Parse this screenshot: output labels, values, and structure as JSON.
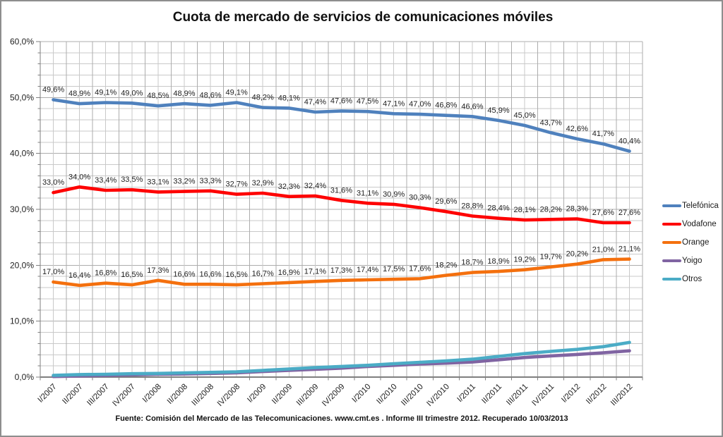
{
  "window": {
    "background": "#ffffff",
    "border_color": "#8e8e8e"
  },
  "chart_data": {
    "type": "line",
    "title": "Cuota de mercado de servicios de comunicaciones móviles",
    "source_note": "Fuente: Comisión del Mercado de las Telecomunicaciones. www.cmt.es . Informe III trimestre 2012. Recuperado 10/03/2013",
    "categories": [
      "I/2007",
      "II/2007",
      "III/2007",
      "IV/2007",
      "I/2008",
      "II/2008",
      "III/2008",
      "IV/2008",
      "I/2009",
      "II/2009",
      "III/2009",
      "IV/2009",
      "I/2010",
      "II/2010",
      "III/2010",
      "IV/2010",
      "I/2011",
      "II/2011",
      "III/2011",
      "IV/2011",
      "I/2012",
      "II/2012",
      "III/2012"
    ],
    "series": [
      {
        "name": "Telefónica",
        "color": "#4F81BD",
        "labels_visible": true,
        "values": [
          49.6,
          48.9,
          49.1,
          49.0,
          48.5,
          48.9,
          48.6,
          49.1,
          48.2,
          48.1,
          47.4,
          47.6,
          47.5,
          47.1,
          47.0,
          46.8,
          46.6,
          45.9,
          45.0,
          43.7,
          42.6,
          41.7,
          40.4
        ]
      },
      {
        "name": "Vodafone",
        "color": "#FE0000",
        "labels_visible": true,
        "values": [
          33.0,
          34.0,
          33.4,
          33.5,
          33.1,
          33.2,
          33.3,
          32.7,
          32.9,
          32.3,
          32.4,
          31.6,
          31.1,
          30.9,
          30.3,
          29.6,
          28.8,
          28.4,
          28.1,
          28.2,
          28.3,
          27.6,
          27.6
        ]
      },
      {
        "name": "Orange",
        "color": "#F4700E",
        "labels_visible": true,
        "values": [
          17.0,
          16.4,
          16.8,
          16.5,
          17.3,
          16.6,
          16.6,
          16.5,
          16.7,
          16.9,
          17.1,
          17.3,
          17.4,
          17.5,
          17.6,
          18.2,
          18.7,
          18.9,
          19.2,
          19.7,
          20.2,
          21.0,
          21.1
        ]
      },
      {
        "name": "Yoigo",
        "color": "#8064A2",
        "labels_visible": false,
        "values_estimated_from_pixels": true,
        "values": [
          0.1,
          0.2,
          0.3,
          0.4,
          0.5,
          0.55,
          0.65,
          0.75,
          1.0,
          1.2,
          1.4,
          1.6,
          1.9,
          2.1,
          2.35,
          2.5,
          2.7,
          3.1,
          3.5,
          3.8,
          4.05,
          4.35,
          4.7
        ]
      },
      {
        "name": "Otros",
        "color": "#4BACC6",
        "labels_visible": false,
        "values_estimated_from_pixels": true,
        "values": [
          0.3,
          0.45,
          0.5,
          0.6,
          0.65,
          0.75,
          0.85,
          0.95,
          1.2,
          1.45,
          1.7,
          1.9,
          2.1,
          2.4,
          2.65,
          2.9,
          3.2,
          3.7,
          4.2,
          4.6,
          4.95,
          5.45,
          6.2
        ]
      }
    ],
    "y_axis": {
      "min": 0,
      "max": 60,
      "major_step": 10,
      "minor_step": 2,
      "tick_labels": [
        "0,0%",
        "10,0%",
        "20,0%",
        "30,0%",
        "40,0%",
        "50,0%",
        "60,0%"
      ]
    },
    "x_axis": {
      "label_rotation_deg": -45
    },
    "grid": true,
    "legend_position": "right",
    "label_format": "decimal-comma-percent",
    "colors": {
      "grid_minor": "#C9C9C9",
      "grid_major": "#ADADAD",
      "axis": "#7F7F7F",
      "data_label": "#1F1F1F",
      "tick_label": "#1F1F1F"
    }
  }
}
